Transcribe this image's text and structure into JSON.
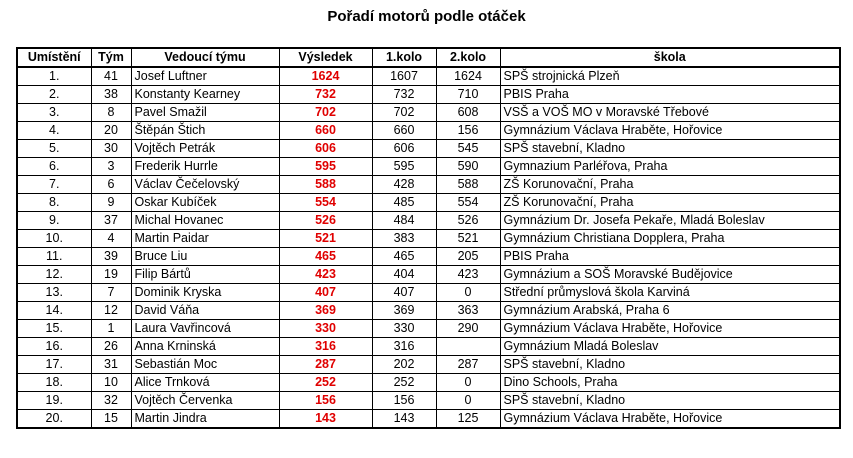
{
  "title": "Pořadí motorů podle otáček",
  "colors": {
    "result": "#e00000"
  },
  "headers": [
    "Umístění",
    "Tým",
    "Vedoucí týmu",
    "Výsledek",
    "1.kolo",
    "2.kolo",
    "škola"
  ],
  "rows": [
    [
      "1.",
      "41",
      "Josef Luftner",
      "1624",
      "1607",
      "1624",
      "SPŠ strojnická Plzeň"
    ],
    [
      "2.",
      "38",
      "Konstanty Kearney",
      "732",
      "732",
      "710",
      "PBIS Praha"
    ],
    [
      "3.",
      "8",
      "Pavel Smažil",
      "702",
      "702",
      "608",
      "VSŠ a VOŠ MO v Moravské Třebové"
    ],
    [
      "4.",
      "20",
      "Štěpán Štich",
      "660",
      "660",
      "156",
      "Gymnázium Václava Hraběte, Hořovice"
    ],
    [
      "5.",
      "30",
      "Vojtěch Petrák",
      "606",
      "606",
      "545",
      "SPŠ stavební, Kladno"
    ],
    [
      "6.",
      "3",
      "Frederik Hurrle",
      "595",
      "595",
      "590",
      "Gymnazium Parléřova, Praha"
    ],
    [
      "7.",
      "6",
      "Václav Čečelovský",
      "588",
      "428",
      "588",
      "ZŠ Korunovační, Praha"
    ],
    [
      "8.",
      "9",
      "Oskar Kubíček",
      "554",
      "485",
      "554",
      "ZŠ Korunovační, Praha"
    ],
    [
      "9.",
      "37",
      "Michal Hovanec",
      "526",
      "484",
      "526",
      "Gymnázium Dr. Josefa Pekaře, Mladá Boleslav"
    ],
    [
      "10.",
      "4",
      "Martin Paidar",
      "521",
      "383",
      "521",
      "Gymnázium Christiana Dopplera, Praha"
    ],
    [
      "11.",
      "39",
      "Bruce Liu",
      "465",
      "465",
      "205",
      "PBIS Praha"
    ],
    [
      "12.",
      "19",
      "Filip Bártů",
      "423",
      "404",
      "423",
      "Gymnázium a SOŠ Moravské Budějovice"
    ],
    [
      "13.",
      "7",
      "Dominik Kryska",
      "407",
      "407",
      "0",
      "Střední průmyslová škola Karviná"
    ],
    [
      "14.",
      "12",
      "David Váňa",
      "369",
      "369",
      "363",
      "Gymnázium Arabská, Praha 6"
    ],
    [
      "15.",
      "1",
      "Laura Vavřincová",
      "330",
      "330",
      "290",
      "Gymnázium Václava Hraběte, Hořovice"
    ],
    [
      "16.",
      "26",
      "Anna Krninská",
      "316",
      "316",
      "",
      "Gymnázium  Mladá Boleslav"
    ],
    [
      "17.",
      "31",
      "Sebastián Moc",
      "287",
      "202",
      "287",
      "SPŠ stavební,  Kladno"
    ],
    [
      "18.",
      "10",
      "Alice Trnková",
      "252",
      "252",
      "0",
      "Dino Schools, Praha"
    ],
    [
      "19.",
      "32",
      "Vojtěch Červenka",
      "156",
      "156",
      "0",
      "SPŠ stavební,  Kladno"
    ],
    [
      "20.",
      "15",
      "Martin Jindra",
      "143",
      "143",
      "125",
      "Gymnázium Václava Hraběte, Hořovice"
    ]
  ]
}
